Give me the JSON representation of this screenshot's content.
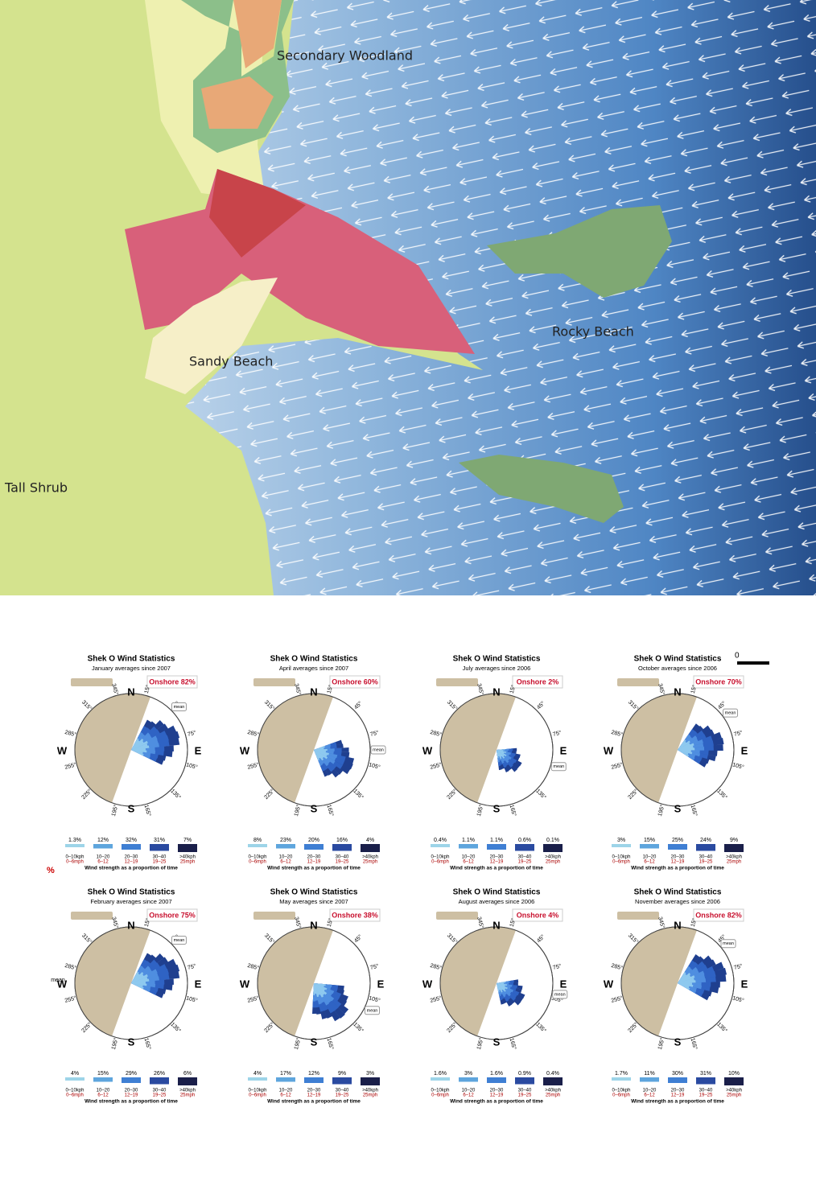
{
  "map": {
    "labels": [
      "Secondary Woodland",
      "Rocky Beach",
      "Sandy Beach",
      "Tall Shrub"
    ]
  },
  "scale_bar": "0",
  "side_notes": [
    "%",
    "mean"
  ],
  "compass": {
    "N": "N",
    "E": "E",
    "S": "S",
    "W": "W"
  },
  "bearings": [
    "15°",
    "45°",
    "75°",
    "105°",
    "135°",
    "165°",
    "195°",
    "225°",
    "255°",
    "285°",
    "315°",
    "345°"
  ],
  "legend": {
    "kph": [
      "0–10kph",
      "10–20",
      "20–30",
      "30–40",
      ">40kph"
    ],
    "mph": [
      "0–6mph",
      "6–12",
      "12–19",
      "19–25",
      "25mph"
    ],
    "caption": "Wind strength as a proportion of time"
  },
  "panels": [
    {
      "title": "Shek O Wind Statistics",
      "subtitle": "January averages since 2007",
      "onshore": "Onshore 82%",
      "mean": "mean",
      "shares": [
        "1.3%",
        "12%",
        "32%",
        "31%",
        "7%"
      ]
    },
    {
      "title": "Shek O Wind Statistics",
      "subtitle": "April averages since 2007",
      "onshore": "Onshore 60%",
      "mean": "mean",
      "shares": [
        "8%",
        "23%",
        "20%",
        "16%",
        "4%"
      ]
    },
    {
      "title": "Shek O Wind Statistics",
      "subtitle": "July averages since 2006",
      "onshore": "Onshore 2%",
      "mean": "mean",
      "shares": [
        "0.4%",
        "1.1%",
        "1.1%",
        "0.6%",
        "0.1%"
      ]
    },
    {
      "title": "Shek O Wind Statistics",
      "subtitle": "October averages since 2006",
      "onshore": "Onshore 70%",
      "mean": "mean",
      "shares": [
        "3%",
        "15%",
        "25%",
        "24%",
        "9%"
      ]
    },
    {
      "title": "Shek O Wind Statistics",
      "subtitle": "February averages since 2007",
      "onshore": "Onshore 75%",
      "mean": "mean",
      "shares": [
        "4%",
        "15%",
        "29%",
        "26%",
        "6%"
      ]
    },
    {
      "title": "Shek O Wind Statistics",
      "subtitle": "May averages since 2007",
      "onshore": "Onshore 38%",
      "mean": "mean",
      "shares": [
        "4%",
        "17%",
        "12%",
        "9%",
        "3%"
      ]
    },
    {
      "title": "Shek O Wind Statistics",
      "subtitle": "August averages since 2006",
      "onshore": "Onshore 4%",
      "mean": "mean",
      "shares": [
        "1.6%",
        "3%",
        "1.6%",
        "0.9%",
        "0.4%"
      ]
    },
    {
      "title": "Shek O Wind Statistics",
      "subtitle": "November averages since 2006",
      "onshore": "Onshore 82%",
      "mean": "mean",
      "shares": [
        "1.7%",
        "11%",
        "30%",
        "31%",
        "10%"
      ]
    }
  ]
}
